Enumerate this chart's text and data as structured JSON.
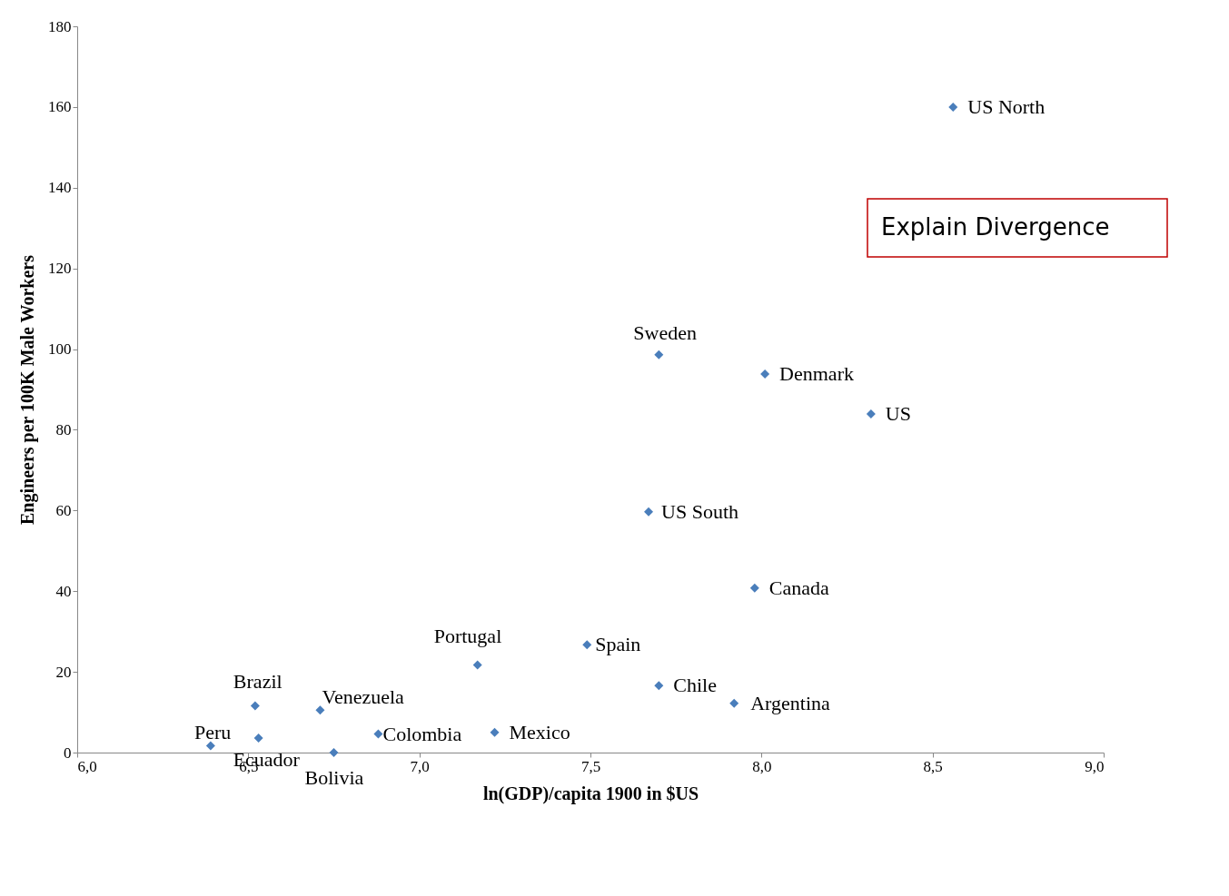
{
  "chart_data": {
    "type": "scatter",
    "xlabel": "ln(GDP)/capita 1900 in  $US",
    "ylabel": "Engineers per 100K Male Workers",
    "x": [
      8.56,
      7.7,
      8.01,
      8.32,
      7.67,
      7.98,
      7.49,
      7.17,
      7.7,
      7.92,
      6.52,
      6.71,
      6.88,
      7.22,
      6.53,
      6.39,
      6.75
    ],
    "values": [
      160,
      98.6,
      93.8,
      83.9,
      59.7,
      40.8,
      26.7,
      21.7,
      16.6,
      12.2,
      11.6,
      10.5,
      4.6,
      5.0,
      3.6,
      1.7,
      0
    ],
    "color": "#4a7ebb",
    "marker": "diamond",
    "grid": false,
    "xlim": [
      6.0,
      9.0
    ],
    "xticks": [
      {
        "value": 6.0,
        "label": "6,0"
      },
      {
        "value": 6.5,
        "label": "6,5"
      },
      {
        "value": 7.0,
        "label": "7,0"
      },
      {
        "value": 7.5,
        "label": "7,5"
      },
      {
        "value": 8.0,
        "label": "8,0"
      },
      {
        "value": 8.5,
        "label": "8,5"
      },
      {
        "value": 9.0,
        "label": "9,0"
      }
    ],
    "ylim": [
      0,
      180
    ],
    "yticks": [
      0,
      20,
      40,
      60,
      80,
      100,
      120,
      140,
      160,
      180
    ],
    "annotations": [
      {
        "text": "US North",
        "x": 8.56,
        "y": 160
      },
      {
        "text": "Sweden",
        "x": 7.7,
        "y": 98.6
      },
      {
        "text": "Denmark",
        "x": 8.01,
        "y": 93.8
      },
      {
        "text": "US",
        "x": 8.32,
        "y": 83.9
      },
      {
        "text": "US South",
        "x": 7.67,
        "y": 59.7
      },
      {
        "text": "Canada",
        "x": 7.98,
        "y": 40.8
      },
      {
        "text": "Spain",
        "x": 7.49,
        "y": 26.7
      },
      {
        "text": "Portugal",
        "x": 7.17,
        "y": 21.7
      },
      {
        "text": "Chile",
        "x": 7.7,
        "y": 16.6
      },
      {
        "text": "Argentina",
        "x": 7.92,
        "y": 12.2
      },
      {
        "text": "Brazil",
        "x": 6.52,
        "y": 11.6
      },
      {
        "text": "Venezuela",
        "x": 6.71,
        "y": 10.5
      },
      {
        "text": "Colombia",
        "x": 6.88,
        "y": 4.6
      },
      {
        "text": "Mexico",
        "x": 7.22,
        "y": 5.0
      },
      {
        "text": "Ecuador",
        "x": 6.53,
        "y": 3.6
      },
      {
        "text": "Peru",
        "x": 6.39,
        "y": 1.7
      },
      {
        "text": "Bolivia",
        "x": 6.75,
        "y": 0
      },
      "Explain Divergence"
    ]
  }
}
